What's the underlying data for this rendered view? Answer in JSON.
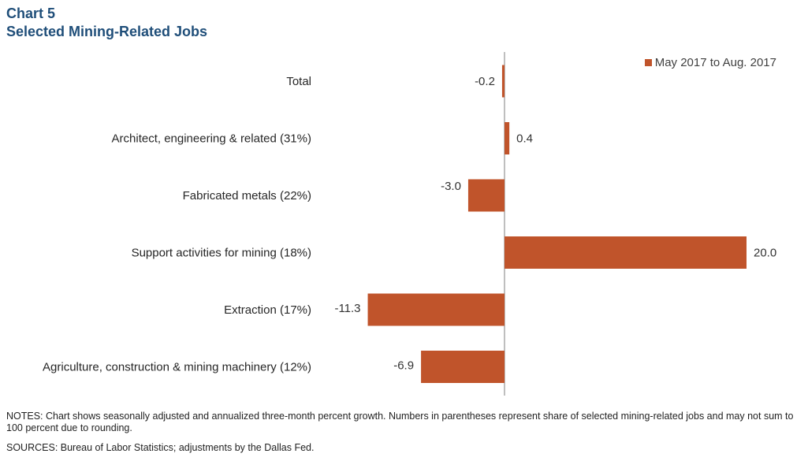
{
  "header": {
    "chart_number": "Chart 5",
    "title": "Selected Mining-Related Jobs"
  },
  "colors": {
    "bar": "#c0542b",
    "title": "#1f4e79",
    "axis": "#7f7f7f"
  },
  "chart_data": {
    "type": "bar",
    "orientation": "horizontal",
    "categories": [
      "Total",
      "Architect, engineering & related (31%)",
      "Fabricated metals (22%)",
      "Support activities for mining (18%)",
      "Extraction (17%)",
      "Agriculture, construction & mining machinery (12%)"
    ],
    "series": [
      {
        "name": "May 2017 to Aug. 2017",
        "values": [
          -0.2,
          0.4,
          -3.0,
          20.0,
          -11.3,
          -6.9
        ],
        "labels": [
          "-0.2",
          "0.4",
          "-3.0",
          "20.0",
          "-11.3",
          "-6.9"
        ]
      }
    ],
    "xlim": [
      -11.3,
      20.0
    ],
    "legend_position": "top-right",
    "grid": false
  },
  "footer": {
    "notes": "NOTES: Chart shows seasonally adjusted and annualized three-month percent growth. Numbers in parentheses represent share of selected mining-related jobs and may not sum to 100 percent due to rounding.",
    "sources": "SOURCES: Bureau of Labor Statistics; adjustments by the Dallas Fed."
  }
}
